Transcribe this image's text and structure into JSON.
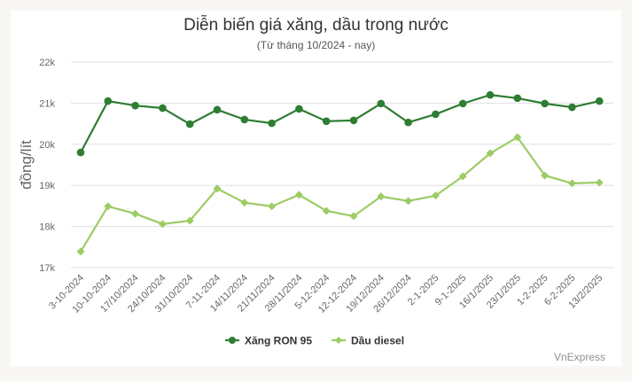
{
  "header": {
    "title": "Diễn biến giá xăng, dầu trong nước",
    "subtitle": "(Từ tháng 10/2024 - nay)"
  },
  "credit": "VnExpress",
  "colors": {
    "ron95": "#2e7d32",
    "diesel": "#9ccc65",
    "grid": "#e0e0e0",
    "axis_text": "#666666",
    "background": "#f8f7f3",
    "card": "#ffffff"
  },
  "chart_data": {
    "type": "line",
    "title": "Diễn biến giá xăng, dầu trong nước",
    "subtitle": "(Từ tháng 10/2024 - nay)",
    "xlabel": "",
    "ylabel": "đồng/lít",
    "ylim": [
      17000,
      22000
    ],
    "yticks": [
      17000,
      18000,
      19000,
      20000,
      21000,
      22000
    ],
    "ytick_labels": [
      "17k",
      "18k",
      "19k",
      "20k",
      "21k",
      "22k"
    ],
    "grid": true,
    "legend_position": "bottom",
    "categories": [
      "3-10-2024",
      "10-10-2024",
      "17/10/2024",
      "24/10/2024",
      "31/10/2024",
      "7-11-2024",
      "14/11/2024",
      "21/11/2024",
      "28/11/2024",
      "5-12-2024",
      "12-12-2024",
      "19/12/2024",
      "26/12/2024",
      "2-1-2025",
      "9-1-2025",
      "16/1/2025",
      "23/1/2025",
      "1-2-2025",
      "6-2-2025",
      "13/2/2025"
    ],
    "series": [
      {
        "name": "Xăng RON 95",
        "marker": "circle",
        "values": [
          19800,
          21050,
          20940,
          20880,
          20490,
          20840,
          20600,
          20510,
          20860,
          20560,
          20580,
          20990,
          20530,
          20730,
          20990,
          21200,
          21120,
          20990,
          20900,
          21050
        ]
      },
      {
        "name": "Dầu diesel",
        "marker": "diamond",
        "values": [
          17390,
          18490,
          18310,
          18060,
          18140,
          18920,
          18580,
          18490,
          18770,
          18380,
          18250,
          18730,
          18620,
          18750,
          19220,
          19780,
          20170,
          19240,
          19050,
          19070
        ]
      }
    ]
  },
  "legend": {
    "items": [
      {
        "label": "Xăng RON 95"
      },
      {
        "label": "Dầu diesel"
      }
    ]
  }
}
